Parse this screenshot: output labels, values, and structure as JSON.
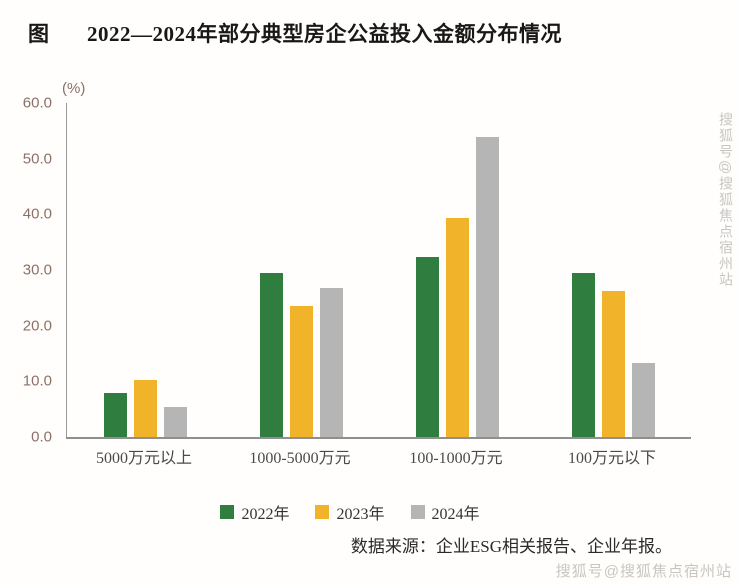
{
  "header": {
    "title_prefix": "图",
    "title": "2022—2024年部分典型房企公益投入金额分布情况"
  },
  "footer": {
    "source": "数据来源：企业ESG相关报告、企业年报。"
  },
  "watermark": {
    "side": "搜狐号@搜狐焦点宿州站",
    "bottom": "搜狐号@搜狐焦点宿州站"
  },
  "colors": {
    "green_2022": "#2f7d3f",
    "gold_2023": "#f0b32a",
    "gray_2024": "#b5b5b5",
    "axis": "#9a9a9a",
    "tick_text": "#8c7065"
  },
  "chart_data": {
    "type": "bar",
    "title": "2022—2024年部分典型房企公益投入金额分布情况",
    "ylabel": "(%)",
    "xlabel": "",
    "ylim": [
      0,
      60
    ],
    "grid": false,
    "legend_position": "bottom",
    "ytick_labels": [
      "60.0",
      "50.0",
      "40.0",
      "30.0",
      "20.0",
      "10.0",
      "0.0"
    ],
    "categories": [
      "5000万元以上",
      "1000-5000万元",
      "100-1000万元",
      "100万元以下"
    ],
    "series": [
      {
        "name": "2022年",
        "color": "#2f7d3f",
        "values": [
          7.9,
          29.5,
          32.4,
          29.5
        ]
      },
      {
        "name": "2023年",
        "color": "#f0b32a",
        "values": [
          10.2,
          23.5,
          39.4,
          26.2
        ]
      },
      {
        "name": "2024年",
        "color": "#b5b5b5",
        "values": [
          5.4,
          26.8,
          53.9,
          13.3
        ]
      }
    ]
  }
}
